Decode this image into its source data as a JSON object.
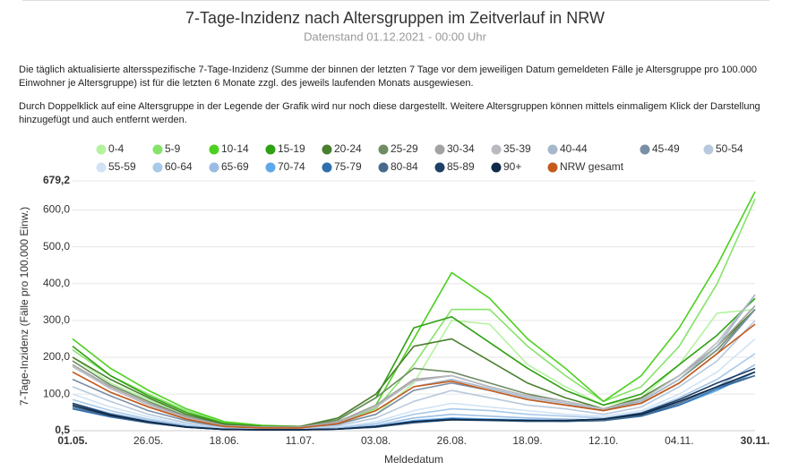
{
  "chart_data": {
    "type": "line",
    "title": "7-Tage-Inzidenz nach Altersgruppen im Zeitverlauf in NRW",
    "subtitle": "Datenstand 01.12.2021 - 00:00 Uhr",
    "notes": [
      "Die täglich aktualisierte altersspezifische 7-Tage-Inzidenz (Summe der binnen der letzten 7 Tage vor dem jeweiligen Datum gemeldeten Fälle je Altersgruppe pro 100.000 Einwohner je Altersgruppe) ist für die letzten 6 Monate zzgl. des jeweils laufenden Monats ausgewiesen.",
      "Durch Doppelklick auf eine Altersgruppe in der Legende der Grafik wird nur noch diese dargestellt. Weitere Altersgruppen können mittels einmaligem Klick der Darstellung hinzugefügt und auch entfernt werden."
    ],
    "x_label": "Meldedatum",
    "y_label": "7-Tage-Inzidenz (Fälle pro 100.000 Einw.)",
    "categories": [
      "01.05.",
      null,
      "26.05.",
      null,
      "18.06.",
      null,
      "11.07.",
      null,
      "03.08.",
      null,
      "26.08.",
      null,
      "18.09.",
      null,
      "12.10.",
      null,
      "04.11.",
      null,
      "30.11."
    ],
    "ylim": [
      0.5,
      679.2
    ],
    "yticks": [
      {
        "value": 0.5,
        "label": "0,5"
      },
      {
        "value": 100,
        "label": "100,0"
      },
      {
        "value": 200,
        "label": "200,0"
      },
      {
        "value": 300,
        "label": "300,0"
      },
      {
        "value": 400,
        "label": "400,0"
      },
      {
        "value": 500,
        "label": "500,0"
      },
      {
        "value": 600,
        "label": "600,0"
      },
      {
        "value": 679.2,
        "label": "679,2"
      }
    ],
    "grid": true,
    "series": [
      {
        "name": "0-4",
        "color": "#b5f2a0",
        "values": [
          200,
          130,
          85,
          45,
          20,
          12,
          10,
          18,
          45,
          130,
          300,
          290,
          180,
          120,
          70,
          90,
          180,
          320,
          330
        ]
      },
      {
        "name": "5-9",
        "color": "#86e36a",
        "values": [
          220,
          150,
          100,
          55,
          22,
          14,
          12,
          22,
          60,
          180,
          330,
          330,
          230,
          150,
          80,
          120,
          230,
          400,
          630
        ]
      },
      {
        "name": "10-14",
        "color": "#4dd11f",
        "values": [
          250,
          170,
          110,
          60,
          25,
          15,
          12,
          25,
          70,
          250,
          430,
          360,
          250,
          170,
          80,
          150,
          280,
          450,
          650
        ]
      },
      {
        "name": "15-19",
        "color": "#2ea012",
        "values": [
          230,
          150,
          95,
          50,
          20,
          12,
          12,
          30,
          90,
          280,
          310,
          240,
          170,
          110,
          70,
          100,
          180,
          260,
          360
        ]
      },
      {
        "name": "20-24",
        "color": "#4a7f2e",
        "values": [
          200,
          140,
          90,
          45,
          18,
          12,
          12,
          35,
          100,
          230,
          250,
          190,
          130,
          90,
          60,
          90,
          150,
          230,
          330
        ]
      },
      {
        "name": "25-29",
        "color": "#6f8c62",
        "values": [
          190,
          125,
          80,
          40,
          15,
          10,
          10,
          30,
          90,
          170,
          160,
          130,
          100,
          80,
          60,
          80,
          140,
          220,
          330
        ]
      },
      {
        "name": "30-34",
        "color": "#a3a3a3",
        "values": [
          180,
          120,
          75,
          38,
          14,
          10,
          10,
          25,
          70,
          140,
          150,
          120,
          95,
          80,
          60,
          85,
          150,
          230,
          340
        ]
      },
      {
        "name": "35-39",
        "color": "#b8bac0",
        "values": [
          175,
          115,
          70,
          35,
          13,
          9,
          9,
          22,
          65,
          135,
          150,
          120,
          95,
          80,
          60,
          85,
          150,
          240,
          370
        ]
      },
      {
        "name": "40-44",
        "color": "#a6b8cc",
        "values": [
          160,
          105,
          65,
          32,
          12,
          8,
          8,
          20,
          55,
          120,
          140,
          115,
          90,
          75,
          55,
          80,
          140,
          230,
          370
        ]
      },
      {
        "name": "45-49",
        "color": "#7a8ea5",
        "values": [
          140,
          95,
          55,
          28,
          10,
          7,
          7,
          18,
          45,
          110,
          130,
          110,
          85,
          70,
          55,
          75,
          130,
          210,
          330
        ]
      },
      {
        "name": "50-54",
        "color": "#b7c9dc",
        "values": [
          120,
          80,
          45,
          22,
          8,
          6,
          6,
          14,
          35,
          80,
          110,
          90,
          70,
          60,
          45,
          65,
          120,
          190,
          300
        ]
      },
      {
        "name": "55-59",
        "color": "#d1e3f5",
        "values": [
          100,
          65,
          38,
          18,
          7,
          5,
          5,
          10,
          25,
          55,
          75,
          65,
          55,
          45,
          40,
          55,
          100,
          160,
          250
        ]
      },
      {
        "name": "60-64",
        "color": "#a8c9ea",
        "values": [
          85,
          55,
          32,
          15,
          6,
          4,
          4,
          8,
          20,
          45,
          60,
          55,
          45,
          40,
          35,
          50,
          90,
          140,
          210
        ]
      },
      {
        "name": "65-69",
        "color": "#9bbde4",
        "values": [
          75,
          48,
          28,
          13,
          5,
          4,
          4,
          7,
          15,
          35,
          45,
          40,
          35,
          32,
          30,
          45,
          80,
          120,
          180
        ]
      },
      {
        "name": "70-74",
        "color": "#5ea8ea",
        "values": [
          65,
          42,
          24,
          11,
          4,
          3,
          3,
          5,
          12,
          28,
          35,
          32,
          30,
          28,
          28,
          40,
          70,
          110,
          160
        ]
      },
      {
        "name": "75-79",
        "color": "#2f6fae",
        "values": [
          60,
          38,
          22,
          10,
          4,
          3,
          3,
          5,
          10,
          25,
          32,
          30,
          28,
          26,
          28,
          40,
          70,
          115,
          150
        ]
      },
      {
        "name": "80-84",
        "color": "#476b8c",
        "values": [
          65,
          40,
          22,
          10,
          4,
          3,
          3,
          5,
          10,
          22,
          30,
          28,
          26,
          26,
          28,
          42,
          75,
          120,
          150
        ]
      },
      {
        "name": "85-89",
        "color": "#1e3f66",
        "values": [
          75,
          45,
          25,
          11,
          4,
          3,
          3,
          5,
          12,
          25,
          32,
          30,
          28,
          28,
          32,
          48,
          85,
          130,
          170
        ]
      },
      {
        "name": "90+",
        "color": "#0f2a4a",
        "values": [
          70,
          42,
          24,
          10,
          4,
          3,
          3,
          5,
          12,
          25,
          30,
          30,
          28,
          28,
          32,
          45,
          80,
          120,
          160
        ]
      },
      {
        "name": "NRW gesamt",
        "color": "#c55a1a",
        "values": [
          160,
          105,
          65,
          32,
          12,
          8,
          8,
          20,
          55,
          120,
          135,
          110,
          85,
          70,
          55,
          75,
          130,
          210,
          290
        ]
      }
    ]
  }
}
